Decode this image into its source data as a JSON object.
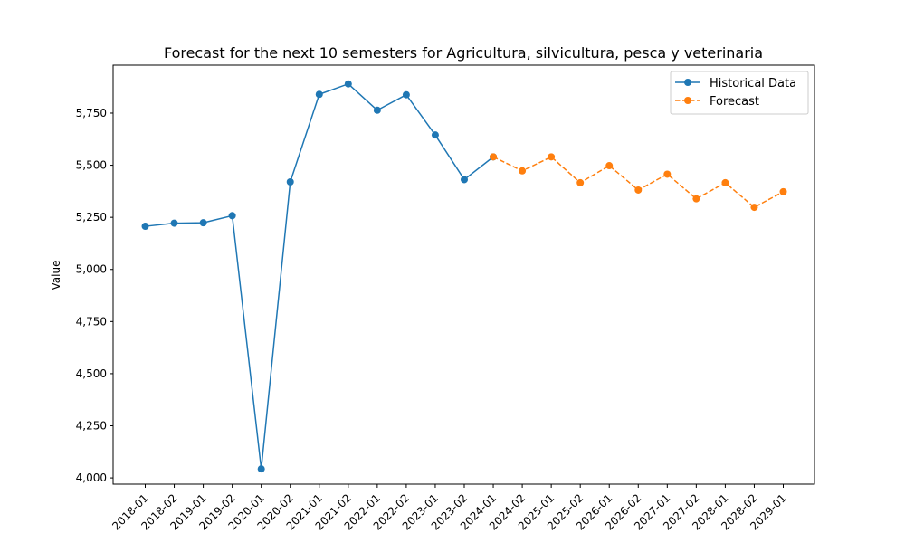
{
  "chart_data": {
    "type": "line",
    "title": "Forecast for the next 10 semesters for Agricultura, silvicultura, pesca y veterinaria",
    "xlabel": "",
    "ylabel": "Value",
    "ylim": [
      3970,
      5980
    ],
    "yticks": [
      4000,
      4250,
      4500,
      4750,
      5000,
      5250,
      5500,
      5750
    ],
    "ytick_labels": [
      "4,000",
      "4,250",
      "4,500",
      "4,750",
      "5,000",
      "5,250",
      "5,500",
      "5,750"
    ],
    "categories": [
      "2018-01",
      "2018-02",
      "2019-01",
      "2019-02",
      "2020-01",
      "2020-02",
      "2021-01",
      "2021-02",
      "2022-01",
      "2022-02",
      "2023-01",
      "2023-02",
      "2024-01",
      "2024-02",
      "2025-01",
      "2025-02",
      "2026-01",
      "2026-02",
      "2027-01",
      "2027-02",
      "2028-01",
      "2028-02",
      "2029-01"
    ],
    "grid": false,
    "legend_position": "top-right",
    "series": [
      {
        "name": "Historical Data",
        "color": "#1f77b4",
        "line_style": "solid",
        "marker": "circle",
        "x": [
          "2018-01",
          "2018-02",
          "2019-01",
          "2019-02",
          "2020-01",
          "2020-02",
          "2021-01",
          "2021-02",
          "2022-01",
          "2022-02",
          "2023-01",
          "2023-02",
          "2024-01"
        ],
        "values": [
          5207,
          5222,
          5224,
          5258,
          4043,
          5420,
          5840,
          5890,
          5764,
          5838,
          5645,
          5431,
          5540
        ]
      },
      {
        "name": "Forecast",
        "color": "#ff7f0e",
        "line_style": "dashed",
        "marker": "circle",
        "x": [
          "2024-01",
          "2024-02",
          "2025-01",
          "2025-02",
          "2026-01",
          "2026-02",
          "2027-01",
          "2027-02",
          "2028-01",
          "2028-02",
          "2029-01"
        ],
        "values": [
          5540,
          5473,
          5540,
          5416,
          5498,
          5381,
          5457,
          5339,
          5416,
          5298,
          5373
        ]
      }
    ]
  }
}
